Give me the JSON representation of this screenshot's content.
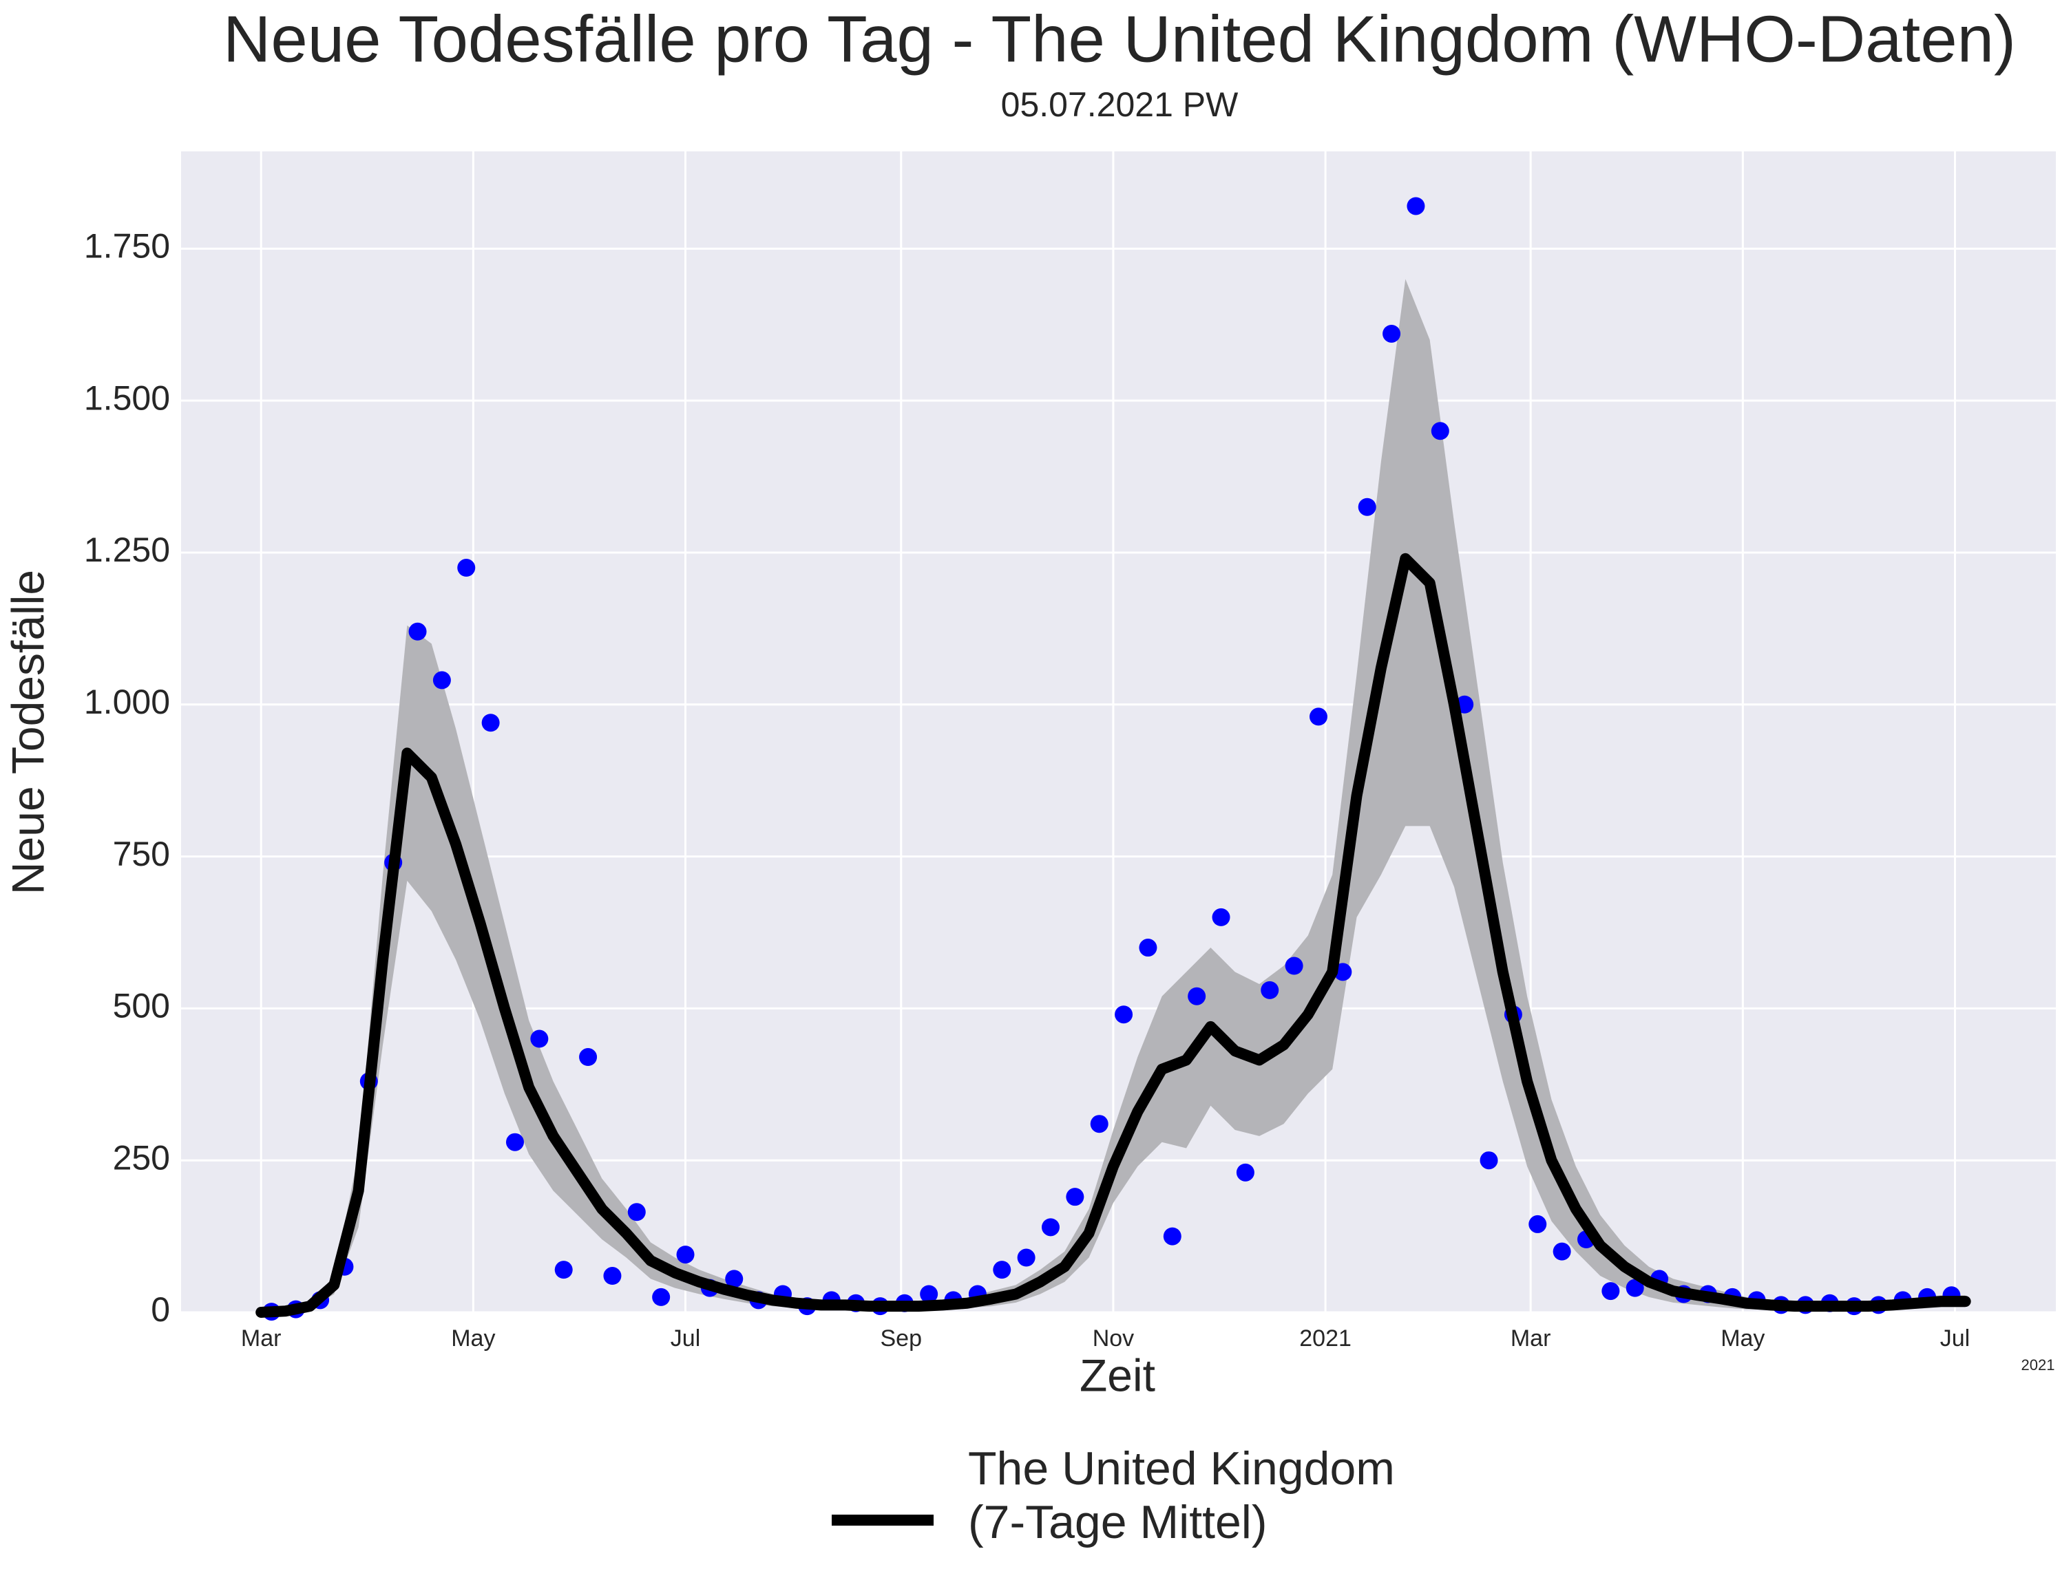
{
  "chart_data": {
    "type": "line",
    "title": "Neue Todesfälle pro Tag - The United Kingdom (WHO-Daten)",
    "subtitle": "05.07.2021 PW",
    "x_label": "Zeit",
    "y_label": "Neue Todesfälle",
    "x_offset_label": "2021",
    "xlim": [
      -23,
      516
    ],
    "xticks": [
      {
        "value": 0,
        "label": "Mar"
      },
      {
        "value": 61,
        "label": "May"
      },
      {
        "value": 122,
        "label": "Jul"
      },
      {
        "value": 184,
        "label": "Sep"
      },
      {
        "value": 245,
        "label": "Nov"
      },
      {
        "value": 306,
        "label": "2021"
      },
      {
        "value": 365,
        "label": "Mar"
      },
      {
        "value": 426,
        "label": "May"
      },
      {
        "value": 487,
        "label": "Jul"
      }
    ],
    "ylim": [
      0,
      1910
    ],
    "yticks": [
      0,
      250,
      500,
      750,
      {
        "value": 1000,
        "label": "1.000"
      },
      {
        "value": 1250,
        "label": "1.250"
      },
      {
        "value": 1500,
        "label": "1.500"
      },
      {
        "value": 1750,
        "label": "1.750"
      }
    ],
    "grid": true,
    "legend": "bottom",
    "series": [
      {
        "name": "The United Kingdom (7-Tage Mittel)",
        "color": "#000000",
        "x": [
          0,
          7,
          14,
          21,
          28,
          35,
          42,
          49,
          56,
          63,
          70,
          77,
          84,
          91,
          98,
          105,
          112,
          119,
          126,
          133,
          140,
          147,
          154,
          161,
          168,
          175,
          182,
          189,
          196,
          203,
          210,
          217,
          224,
          231,
          238,
          245,
          252,
          259,
          266,
          273,
          280,
          287,
          294,
          301,
          308,
          315,
          322,
          329,
          336,
          343,
          350,
          357,
          364,
          371,
          378,
          385,
          392,
          399,
          406,
          413,
          420,
          427,
          434,
          441,
          448,
          455,
          462,
          469,
          476,
          483,
          490
        ],
        "values": [
          0,
          2,
          10,
          45,
          200,
          580,
          920,
          880,
          770,
          640,
          500,
          370,
          290,
          230,
          170,
          130,
          85,
          65,
          50,
          38,
          28,
          20,
          15,
          12,
          12,
          10,
          10,
          10,
          12,
          15,
          22,
          30,
          50,
          75,
          130,
          240,
          330,
          400,
          415,
          470,
          430,
          415,
          440,
          490,
          560,
          850,
          1060,
          1240,
          1200,
          1000,
          780,
          560,
          380,
          250,
          170,
          110,
          75,
          50,
          35,
          28,
          22,
          15,
          12,
          10,
          10,
          10,
          10,
          12,
          15,
          18,
          18
        ]
      }
    ],
    "band": {
      "color": "#b4b4b8",
      "upper": [
        0,
        4,
        15,
        60,
        260,
        720,
        1130,
        1100,
        960,
        800,
        640,
        480,
        380,
        300,
        220,
        170,
        115,
        90,
        70,
        55,
        42,
        30,
        24,
        20,
        20,
        17,
        17,
        17,
        20,
        24,
        35,
        45,
        70,
        100,
        170,
        300,
        420,
        520,
        560,
        600,
        560,
        540,
        570,
        620,
        720,
        1050,
        1400,
        1700,
        1600,
        1300,
        1020,
        740,
        520,
        350,
        240,
        160,
        110,
        75,
        55,
        45,
        35,
        25,
        20,
        17,
        17,
        17,
        17,
        20,
        24,
        28,
        28
      ],
      "lower": [
        0,
        0,
        5,
        30,
        140,
        440,
        710,
        660,
        580,
        480,
        360,
        260,
        200,
        160,
        120,
        90,
        55,
        40,
        30,
        22,
        15,
        10,
        7,
        5,
        5,
        4,
        4,
        4,
        5,
        7,
        10,
        16,
        30,
        50,
        90,
        180,
        240,
        280,
        270,
        340,
        300,
        290,
        310,
        360,
        400,
        650,
        720,
        800,
        800,
        700,
        540,
        380,
        240,
        150,
        100,
        60,
        40,
        25,
        16,
        12,
        8,
        5,
        4,
        3,
        3,
        3,
        3,
        4,
        6,
        8,
        8
      ]
    },
    "points": {
      "color": "#0000ff",
      "x": [
        3,
        10,
        17,
        24,
        31,
        38,
        45,
        52,
        59,
        66,
        73,
        80,
        87,
        94,
        101,
        108,
        115,
        122,
        129,
        136,
        143,
        150,
        157,
        164,
        171,
        178,
        185,
        192,
        199,
        206,
        213,
        220,
        227,
        234,
        241,
        248,
        255,
        262,
        269,
        276,
        283,
        290,
        297,
        304,
        311,
        318,
        325,
        332,
        339,
        346,
        353,
        360,
        367,
        374,
        381,
        388,
        395,
        402,
        409,
        416,
        423,
        430,
        437,
        444,
        451,
        458,
        465,
        472,
        479,
        486
      ],
      "values": [
        1,
        5,
        20,
        75,
        380,
        740,
        1120,
        1040,
        1225,
        970,
        280,
        450,
        70,
        420,
        60,
        165,
        25,
        95,
        40,
        55,
        20,
        30,
        10,
        20,
        15,
        10,
        15,
        30,
        20,
        30,
        70,
        90,
        140,
        190,
        310,
        490,
        600,
        125,
        520,
        650,
        230,
        530,
        570,
        980,
        560,
        1325,
        1610,
        1820,
        1450,
        1000,
        250,
        490,
        145,
        100,
        120,
        35,
        40,
        55,
        30,
        30,
        25,
        20,
        12,
        12,
        15,
        10,
        12,
        20,
        25,
        28
      ]
    }
  }
}
